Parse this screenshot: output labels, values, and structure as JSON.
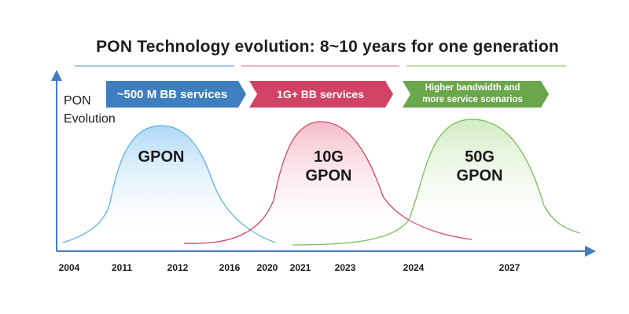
{
  "title": "PON Technology evolution: 8~10 years for one generation",
  "y_axis_label_line1": "PON",
  "y_axis_label_line2": "Evolution",
  "banners": [
    {
      "text": "~500 M BB services",
      "color": "#3f7fc0"
    },
    {
      "text": "1G+ BB services",
      "color": "#d14365"
    },
    {
      "text_line1": "Higher bandwidth and",
      "text_line2": "more service scenarios",
      "color": "#6aa64a"
    }
  ],
  "generations": [
    {
      "line1": "GPON",
      "line2": "",
      "color": "#5fb3e2"
    },
    {
      "line1": "10G",
      "line2": "GPON",
      "color": "#d14365"
    },
    {
      "line1": "50G",
      "line2": "GPON",
      "color": "#77bd5a"
    }
  ],
  "x_ticks": [
    "2004",
    "2011",
    "2012",
    "2016",
    "2020",
    "2021",
    "2023",
    "2024",
    "2027"
  ],
  "colors": {
    "axis": "#3f7fc0",
    "title_underline_blue": "#a9c8e6",
    "title_underline_pink": "#efb3c3",
    "title_underline_green": "#bfe0ae"
  }
}
